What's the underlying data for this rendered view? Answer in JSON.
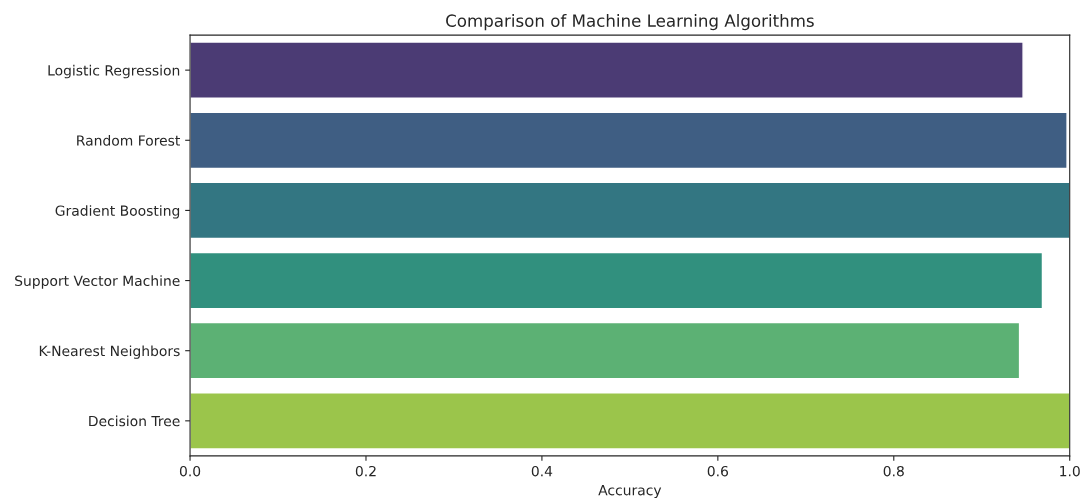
{
  "chart_data": {
    "type": "bar",
    "orientation": "horizontal",
    "title": "Comparison of Machine Learning Algorithms",
    "xlabel": "Accuracy",
    "categories": [
      "Logistic Regression",
      "Random Forest",
      "Gradient Boosting",
      "Support Vector Machine",
      "K-Nearest Neighbors",
      "Decision Tree"
    ],
    "values": [
      0.947,
      0.997,
      1.0,
      0.969,
      0.943,
      1.0
    ],
    "colors": [
      "#4b3b74",
      "#3f5e83",
      "#337682",
      "#31907e",
      "#5cb174",
      "#9bc54b"
    ],
    "xlim": [
      0,
      1
    ],
    "xticks": [
      {
        "value": 0,
        "label": "0.0"
      },
      0.2,
      0.4,
      0.6,
      0.8,
      {
        "value": 1,
        "label": "1.0"
      }
    ],
    "grid": false,
    "legend": false
  }
}
